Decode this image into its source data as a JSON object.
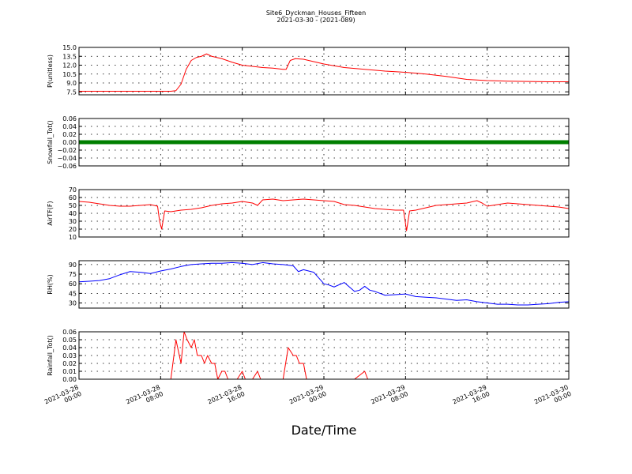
{
  "title_line1": "Site6_Dyckman_Houses_Fifteen",
  "title_line2": "2021-03-30 - (2021-089)",
  "xlabel": "Date/Time",
  "x_ticks": [
    {
      "pos": 0,
      "l1": "2021-03-28",
      "l2": "00:00"
    },
    {
      "pos": 8,
      "l1": "2021-03-28",
      "l2": "08:00"
    },
    {
      "pos": 16,
      "l1": "2021-03-28",
      "l2": "16:00"
    },
    {
      "pos": 24,
      "l1": "2021-03-29",
      "l2": "00:00"
    },
    {
      "pos": 32,
      "l1": "2021-03-29",
      "l2": "08:00"
    },
    {
      "pos": 40,
      "l1": "2021-03-29",
      "l2": "16:00"
    },
    {
      "pos": 48,
      "l1": "2021-03-30",
      "l2": "00:00"
    }
  ],
  "chart_data": [
    {
      "type": "line",
      "ylabel": "P(unitless)",
      "ylim": [
        7.0,
        15.0
      ],
      "yticks": [
        "7.5",
        "9.0",
        "10.5",
        "12.0",
        "13.5",
        "15.0"
      ],
      "ytick_values": [
        7.5,
        9.0,
        10.5,
        12.0,
        13.5,
        15.0
      ],
      "color": "#ff0000",
      "grid": true,
      "x": [
        0,
        4,
        8,
        9,
        9.5,
        10,
        10.5,
        11,
        11.5,
        12,
        12.5,
        13,
        13.5,
        14,
        15,
        16,
        17,
        18,
        19,
        20,
        20.3,
        20.7,
        21.2,
        22,
        23,
        24,
        25,
        26,
        28,
        30,
        32,
        34,
        36,
        38,
        40,
        42,
        44,
        46,
        48
      ],
      "values": [
        7.6,
        7.6,
        7.6,
        7.6,
        7.7,
        8.8,
        11.3,
        12.8,
        13.3,
        13.5,
        13.9,
        13.5,
        13.3,
        13.1,
        12.5,
        12.0,
        11.8,
        11.6,
        11.5,
        11.3,
        11.3,
        12.8,
        13.1,
        13.0,
        12.6,
        12.2,
        11.9,
        11.6,
        11.3,
        11.0,
        10.8,
        10.5,
        10.1,
        9.6,
        9.4,
        9.3,
        9.25,
        9.2,
        9.2
      ]
    },
    {
      "type": "line",
      "ylabel": "Snowfall_Tot()",
      "ylim": [
        -0.06,
        0.06
      ],
      "yticks": [
        "−0.06",
        "−0.04",
        "−0.02",
        "0.00",
        "0.02",
        "0.04",
        "0.06"
      ],
      "ytick_values": [
        -0.06,
        -0.04,
        -0.02,
        0.0,
        0.02,
        0.04,
        0.06
      ],
      "color": "#007f00",
      "marker": "point",
      "grid": true,
      "x": [
        0,
        48
      ],
      "values": [
        0.0,
        0.0
      ]
    },
    {
      "type": "line",
      "ylabel": "AirTF(F)",
      "ylim": [
        10,
        70
      ],
      "yticks": [
        "10",
        "20",
        "30",
        "40",
        "50",
        "60",
        "70"
      ],
      "ytick_values": [
        10,
        20,
        30,
        40,
        50,
        60,
        70
      ],
      "color": "#ff0000",
      "grid": true,
      "x": [
        0,
        1,
        2,
        3,
        4,
        5,
        6,
        7,
        7.7,
        7.9,
        8.1,
        8.4,
        9,
        10,
        11,
        12,
        13,
        14,
        15,
        16,
        17,
        17.5,
        18,
        19,
        20,
        21,
        22,
        23,
        24,
        25,
        26,
        27,
        28,
        29,
        30,
        31,
        31.5,
        31.8,
        32.1,
        32.4,
        33,
        34,
        35,
        36,
        37,
        38,
        39,
        39.5,
        40,
        41,
        42,
        43,
        44,
        45,
        46,
        47,
        48
      ],
      "values": [
        55,
        54,
        52,
        50,
        49,
        49,
        50,
        51,
        49,
        30,
        20,
        43,
        42,
        44,
        45,
        47,
        50,
        52,
        53,
        55,
        53,
        50,
        57,
        58,
        56,
        57,
        58,
        57,
        56,
        55,
        51,
        50,
        48,
        46,
        45,
        44,
        44,
        44,
        18,
        43,
        44,
        47,
        50,
        51,
        52,
        53,
        56,
        53,
        49,
        51,
        53,
        52,
        51,
        50,
        49,
        48,
        46
      ]
    },
    {
      "type": "line",
      "ylabel": "RH(%)",
      "ylim": [
        22,
        96
      ],
      "yticks": [
        "30",
        "45",
        "60",
        "75",
        "90"
      ],
      "ytick_values": [
        30,
        45,
        60,
        75,
        90
      ],
      "color": "#0000ff",
      "grid": true,
      "x": [
        0,
        1,
        2,
        3,
        4,
        5,
        6,
        7,
        8,
        9,
        10,
        11,
        12,
        13,
        14,
        15,
        16,
        17,
        18,
        19,
        20,
        21,
        21.5,
        22,
        23,
        24,
        24.5,
        25,
        26,
        26.5,
        27,
        27.5,
        28,
        28.5,
        29,
        30,
        31,
        32,
        33,
        34,
        35,
        36,
        37,
        38,
        39,
        40,
        41,
        42,
        43,
        44,
        45,
        46,
        47,
        48
      ],
      "values": [
        63,
        64,
        65,
        68,
        74,
        79,
        78,
        76,
        80,
        83,
        87,
        90,
        91,
        92,
        92,
        93,
        92,
        90,
        93,
        91,
        90,
        88,
        79,
        82,
        78,
        60,
        58,
        55,
        62,
        55,
        48,
        50,
        56,
        50,
        48,
        42,
        43,
        44,
        40,
        39,
        38,
        36,
        34,
        35,
        32,
        30,
        28,
        28,
        27,
        27,
        28,
        29,
        31,
        32
      ]
    },
    {
      "type": "line",
      "ylabel": "Rainfall_Tot()",
      "ylim": [
        0.0,
        0.06
      ],
      "yticks": [
        "0.00",
        "0.01",
        "0.02",
        "0.03",
        "0.04",
        "0.05",
        "0.06"
      ],
      "ytick_values": [
        0.0,
        0.01,
        0.02,
        0.03,
        0.04,
        0.05,
        0.06
      ],
      "color": "#ff0000",
      "grid": true,
      "x": [
        0,
        9,
        9.5,
        10,
        10.3,
        10.6,
        11,
        11.3,
        11.6,
        12,
        12.3,
        12.6,
        13,
        13.3,
        13.6,
        14,
        14.3,
        14.6,
        15,
        15.5,
        16,
        16.3,
        16.6,
        17,
        17.5,
        17.8,
        18.1,
        18.5,
        19.5,
        20,
        20.5,
        21,
        21.3,
        21.6,
        22,
        22.3,
        22.6,
        23,
        27,
        28,
        28.3,
        28.6,
        29,
        48
      ],
      "values": [
        0.0,
        0.0,
        0.05,
        0.02,
        0.06,
        0.05,
        0.04,
        0.05,
        0.03,
        0.03,
        0.02,
        0.03,
        0.02,
        0.02,
        0.0,
        0.01,
        0.01,
        0.0,
        0.0,
        0.0,
        0.01,
        0.0,
        0.0,
        0.0,
        0.01,
        0.0,
        0.0,
        0.0,
        0.0,
        0.0,
        0.04,
        0.03,
        0.03,
        0.02,
        0.02,
        0.0,
        0.0,
        0.0,
        0.0,
        0.01,
        0.0,
        0.0,
        0.0,
        0.0
      ]
    }
  ]
}
